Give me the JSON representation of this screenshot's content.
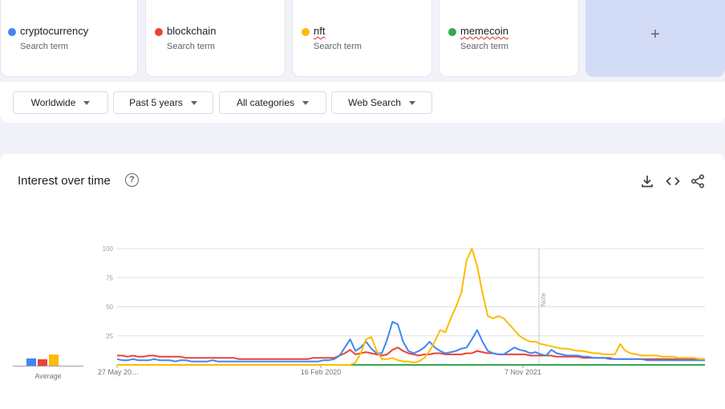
{
  "terms": [
    {
      "name": "cryptocurrency",
      "sub": "Search term",
      "color": "#4285f4",
      "squiggle": false
    },
    {
      "name": "blockchain",
      "sub": "Search term",
      "color": "#ea4335",
      "squiggle": false
    },
    {
      "name": "nft",
      "sub": "Search term",
      "color": "#fbbc04",
      "squiggle": true
    },
    {
      "name": "memecoin",
      "sub": "Search term",
      "color": "#34a853",
      "squiggle": true
    }
  ],
  "add_label": "+",
  "filters": {
    "region": "Worldwide",
    "time": "Past 5 years",
    "category": "All categories",
    "search_type": "Web Search"
  },
  "panel": {
    "title": "Interest over time",
    "help": "?",
    "average_label": "Average",
    "averages": [
      8,
      7,
      13
    ]
  },
  "chart_data": {
    "type": "line",
    "x_ticks": [
      "27 May 20…",
      "16 Feb 2020",
      "7 Nov 2021"
    ],
    "y_ticks": [
      100,
      75,
      50,
      25
    ],
    "ylim": [
      0,
      100
    ],
    "note_label": "Note",
    "grid": true,
    "series": [
      {
        "name": "cryptocurrency",
        "color": "#4285f4",
        "values": [
          5,
          4,
          4,
          5,
          4,
          4,
          4,
          5,
          4,
          4,
          4,
          3,
          4,
          4,
          3,
          3,
          3,
          3,
          4,
          3,
          3,
          3,
          3,
          3,
          3,
          3,
          3,
          3,
          3,
          3,
          3,
          3,
          3,
          3,
          3,
          3,
          3,
          3,
          3,
          4,
          4,
          5,
          8,
          15,
          22,
          12,
          15,
          20,
          14,
          10,
          10,
          22,
          37,
          35,
          20,
          12,
          10,
          12,
          15,
          20,
          15,
          12,
          10,
          11,
          12,
          14,
          15,
          22,
          30,
          20,
          12,
          10,
          9,
          9,
          12,
          15,
          13,
          12,
          10,
          11,
          9,
          8,
          13,
          10,
          9,
          8,
          8,
          8,
          7,
          7,
          6,
          6,
          6,
          5,
          5,
          5,
          5,
          5,
          5,
          5,
          4,
          4,
          4,
          4,
          4,
          4,
          4,
          4,
          4,
          4,
          4,
          4
        ]
      },
      {
        "name": "blockchain",
        "color": "#ea4335",
        "values": [
          8,
          8,
          7,
          8,
          7,
          7,
          8,
          8,
          7,
          7,
          7,
          7,
          7,
          6,
          6,
          6,
          6,
          6,
          6,
          6,
          6,
          6,
          6,
          5,
          5,
          5,
          5,
          5,
          5,
          5,
          5,
          5,
          5,
          5,
          5,
          5,
          5,
          6,
          6,
          6,
          6,
          6,
          8,
          10,
          13,
          9,
          10,
          11,
          10,
          9,
          8,
          9,
          13,
          15,
          12,
          10,
          9,
          8,
          9,
          9,
          10,
          10,
          9,
          9,
          9,
          9,
          10,
          10,
          12,
          11,
          10,
          10,
          9,
          9,
          9,
          9,
          9,
          9,
          8,
          8,
          8,
          8,
          8,
          7,
          7,
          7,
          7,
          7,
          6,
          6,
          6,
          6,
          6,
          6,
          5,
          5,
          5,
          5,
          5,
          5,
          5,
          5,
          5,
          5,
          5,
          5,
          5,
          5,
          5,
          5,
          5,
          5
        ]
      },
      {
        "name": "nft",
        "color": "#fbbc04",
        "values": [
          0,
          0,
          0,
          0,
          0,
          0,
          0,
          0,
          0,
          0,
          0,
          0,
          0,
          0,
          0,
          0,
          0,
          0,
          0,
          0,
          0,
          0,
          0,
          0,
          0,
          0,
          0,
          0,
          0,
          0,
          0,
          0,
          0,
          0,
          0,
          0,
          0,
          0,
          0,
          0,
          0,
          0,
          0,
          0,
          0,
          2,
          10,
          22,
          24,
          12,
          5,
          5,
          6,
          4,
          3,
          3,
          2,
          3,
          6,
          12,
          20,
          30,
          28,
          40,
          50,
          62,
          90,
          100,
          85,
          62,
          42,
          40,
          42,
          40,
          35,
          30,
          25,
          22,
          20,
          20,
          18,
          17,
          16,
          15,
          14,
          14,
          13,
          12,
          12,
          11,
          10,
          10,
          9,
          9,
          9,
          18,
          12,
          10,
          9,
          8,
          8,
          8,
          8,
          7,
          7,
          7,
          6,
          6,
          6,
          6,
          5,
          5
        ]
      },
      {
        "name": "memecoin",
        "color": "#34a853",
        "values": [
          0,
          0,
          0,
          0,
          0,
          0,
          0,
          0,
          0,
          0,
          0,
          0,
          0,
          0,
          0,
          0,
          0,
          0,
          0,
          0,
          0,
          0,
          0,
          0,
          0,
          0,
          0,
          0,
          0,
          0,
          0,
          0,
          0,
          0,
          0,
          0,
          0,
          0,
          0,
          0,
          0,
          0,
          0,
          0,
          0,
          0,
          0,
          0,
          0,
          0,
          0,
          0,
          0,
          0,
          0,
          0,
          0,
          0,
          0,
          0,
          0,
          0,
          0,
          0,
          0,
          0,
          0,
          0,
          0,
          0,
          0,
          0,
          0,
          0,
          0,
          0,
          0,
          0,
          0,
          0,
          0,
          0,
          0,
          0,
          0,
          0,
          0,
          0,
          0,
          0,
          0,
          0,
          0,
          0,
          0,
          0,
          0,
          0,
          0,
          0,
          0,
          0,
          0,
          0,
          0,
          0,
          0,
          0,
          0,
          0,
          0,
          0
        ]
      }
    ]
  }
}
